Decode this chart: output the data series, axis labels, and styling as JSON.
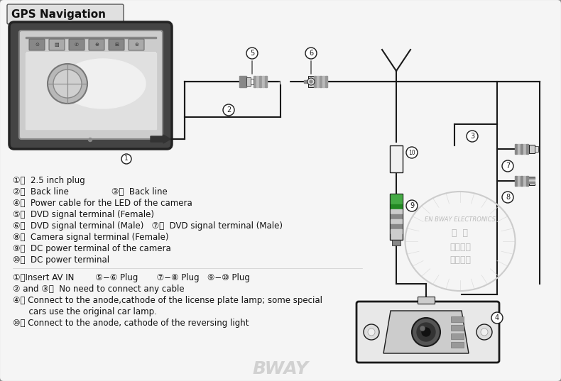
{
  "title": "GPS Navigation",
  "bg_color": "#ffffff",
  "border_color": "#888888",
  "line_color": "#1a1a1a",
  "watermark": "BWAY",
  "legend_lines": [
    "①：  2.5 inch plug",
    "②：  Back line                ③：  Back line",
    "④：  Power cable for the LED of the camera",
    "⑤：  DVD signal terminal (Female)",
    "⑥：  DVD signal terminal (Male)   ⑦：  DVD signal terminal (Male)",
    "⑧：  Camera signal terminal (Female)",
    "⑨：  DC power terminal of the camera",
    "⑩：  DC power terminal"
  ],
  "instruction_lines": [
    "①：Insert AV IN        ⑤−⑥ Plug       ⑦−⑧ Plug   ⑨−⑩ Plug",
    "② and ③：  No need to connect any cable",
    "④： Connect to the anode,cathode of the license plate lamp; some special",
    "      cars use the original car lamp.",
    "⑩： Connect to the anode, cathode of the reversing light"
  ]
}
